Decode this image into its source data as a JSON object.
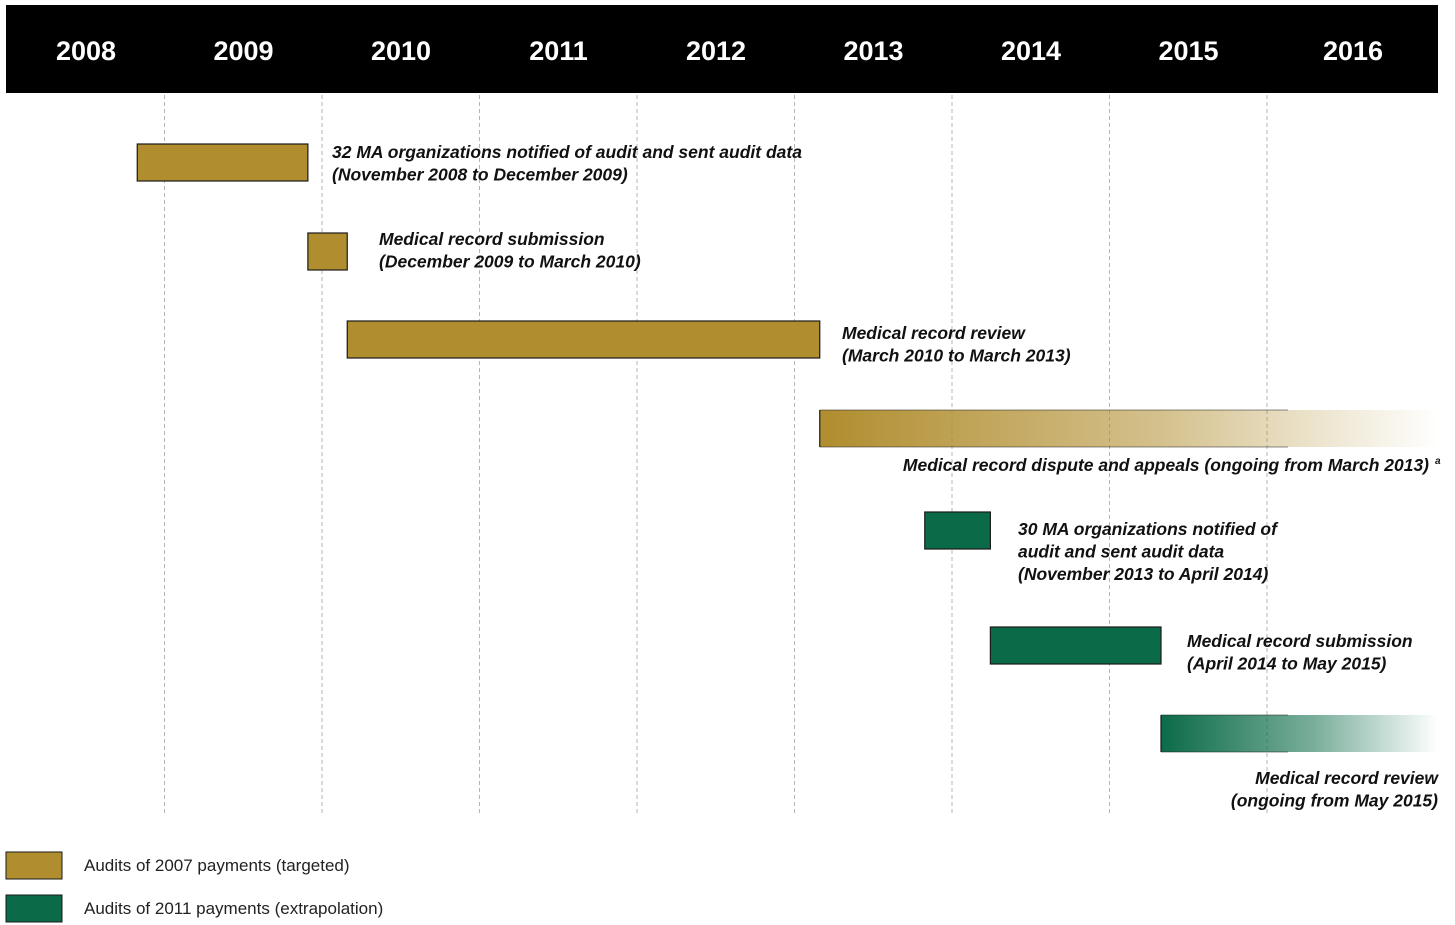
{
  "chart_data": {
    "type": "timeline",
    "x_axis": {
      "ticks": [
        "2008",
        "2009",
        "2010",
        "2011",
        "2012",
        "2013",
        "2014",
        "2015",
        "2016"
      ],
      "range": [
        "2008-01",
        "2016-12"
      ],
      "grid": "dashed vertical lines"
    },
    "series": [
      {
        "name": "Audits of 2007 payments (targeted)",
        "color": "#b08d2e"
      },
      {
        "name": "Audits of 2011 payments (extrapolation)",
        "color": "#0b6b48"
      }
    ],
    "tasks": [
      {
        "series": 0,
        "start": "2008-11",
        "end": "2009-12",
        "ongoing": false,
        "label": [
          "32 MA organizations notified of audit and sent audit data",
          "(November 2008 to December 2009)"
        ]
      },
      {
        "series": 0,
        "start": "2009-12",
        "end": "2010-03",
        "ongoing": false,
        "label": [
          "Medical record submission",
          "(December 2009 to March 2010)"
        ]
      },
      {
        "series": 0,
        "start": "2010-03",
        "end": "2013-03",
        "ongoing": false,
        "label": [
          "Medical record review",
          "(March 2010 to March 2013)"
        ]
      },
      {
        "series": 0,
        "start": "2013-03",
        "end": null,
        "ongoing": true,
        "label": [
          "Medical record dispute and appeals (ongoing from March 2013)"
        ],
        "footnote": "a"
      },
      {
        "series": 1,
        "start": "2013-11",
        "end": "2014-04",
        "ongoing": false,
        "label": [
          "30 MA organizations notified of",
          "audit and sent audit data",
          "(November 2013 to April 2014)"
        ]
      },
      {
        "series": 1,
        "start": "2014-04",
        "end": "2015-05",
        "ongoing": false,
        "label": [
          "Medical record submission",
          "(April 2014 to May 2015)"
        ]
      },
      {
        "series": 1,
        "start": "2015-05",
        "end": null,
        "ongoing": true,
        "label": [
          "Medical record review",
          "(ongoing from May 2015)"
        ]
      }
    ]
  }
}
